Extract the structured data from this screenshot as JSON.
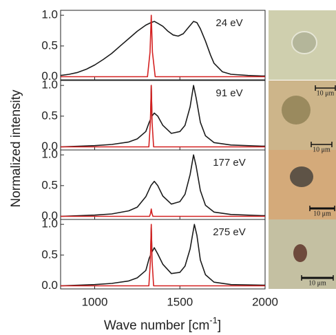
{
  "figure": {
    "y_label": "Normalized intensity",
    "x_label": {
      "base": "Wave number [cm",
      "superscript": "-1",
      "close": "]"
    }
  },
  "chart_data": [
    {
      "type": "line",
      "annotation": "24 eV",
      "xlim": [
        800,
        2000
      ],
      "ylim": [
        -0.05,
        1.08
      ],
      "yticks": [
        {
          "value": 0,
          "label": "0.0"
        },
        {
          "value": 0.5,
          "label": "0.5"
        },
        {
          "value": 1,
          "label": "1.0"
        }
      ],
      "series": [
        {
          "color": "#1a1a1a",
          "x": [
            800,
            850,
            900,
            950,
            1000,
            1050,
            1100,
            1150,
            1200,
            1250,
            1300,
            1330,
            1350,
            1370,
            1400,
            1430,
            1460,
            1490,
            1520,
            1550,
            1580,
            1600,
            1620,
            1650,
            1680,
            1700,
            1750,
            1800,
            1900,
            2000
          ],
          "values": [
            0.02,
            0.04,
            0.07,
            0.12,
            0.19,
            0.28,
            0.38,
            0.5,
            0.62,
            0.74,
            0.84,
            0.88,
            0.9,
            0.87,
            0.82,
            0.74,
            0.68,
            0.66,
            0.7,
            0.8,
            0.9,
            0.88,
            0.78,
            0.58,
            0.35,
            0.22,
            0.08,
            0.04,
            0.02,
            0.01
          ]
        },
        {
          "color": "#d42020",
          "x": [
            800,
            1310,
            1325,
            1332,
            1339,
            1355,
            2000
          ],
          "values": [
            0,
            0,
            0.4,
            1.0,
            0.4,
            0,
            0
          ]
        }
      ]
    },
    {
      "type": "line",
      "annotation": "91 eV",
      "xlim": [
        800,
        2000
      ],
      "ylim": [
        -0.05,
        1.08
      ],
      "yticks": [
        {
          "value": 0,
          "label": "0.0"
        },
        {
          "value": 0.5,
          "label": "0.5"
        },
        {
          "value": 1,
          "label": "1.0"
        }
      ],
      "series": [
        {
          "color": "#1a1a1a",
          "x": [
            800,
            1000,
            1100,
            1200,
            1250,
            1300,
            1320,
            1328,
            1332,
            1336,
            1350,
            1370,
            1400,
            1450,
            1500,
            1530,
            1560,
            1580,
            1595,
            1620,
            1650,
            1700,
            1800,
            2000
          ],
          "values": [
            0.0,
            0.02,
            0.04,
            0.08,
            0.13,
            0.25,
            0.4,
            0.45,
            1.0,
            0.5,
            0.55,
            0.5,
            0.35,
            0.22,
            0.25,
            0.35,
            0.65,
            1.0,
            0.8,
            0.4,
            0.18,
            0.07,
            0.03,
            0.01
          ]
        },
        {
          "color": "#d42020",
          "x": [
            800,
            1318,
            1327,
            1332,
            1337,
            1346,
            2000
          ],
          "values": [
            0,
            0,
            0.4,
            1.0,
            0.4,
            0,
            0
          ]
        }
      ]
    },
    {
      "type": "line",
      "annotation": "177 eV",
      "xlim": [
        800,
        2000
      ],
      "ylim": [
        -0.05,
        1.08
      ],
      "yticks": [
        {
          "value": 0,
          "label": "0.0"
        },
        {
          "value": 0.5,
          "label": "0.5"
        },
        {
          "value": 1,
          "label": "1.0"
        }
      ],
      "series": [
        {
          "color": "#1a1a1a",
          "x": [
            800,
            1000,
            1100,
            1200,
            1250,
            1300,
            1330,
            1350,
            1370,
            1400,
            1450,
            1500,
            1530,
            1560,
            1580,
            1595,
            1620,
            1650,
            1700,
            1800,
            2000
          ],
          "values": [
            0.0,
            0.02,
            0.04,
            0.09,
            0.15,
            0.32,
            0.5,
            0.57,
            0.5,
            0.33,
            0.2,
            0.24,
            0.36,
            0.68,
            1.0,
            0.82,
            0.42,
            0.18,
            0.07,
            0.03,
            0.01
          ]
        },
        {
          "color": "#d42020",
          "x": [
            800,
            1322,
            1328,
            1332,
            1336,
            1342,
            2000
          ],
          "values": [
            0,
            0,
            0.05,
            0.12,
            0.05,
            0,
            0
          ]
        }
      ]
    },
    {
      "type": "line",
      "annotation": "275 eV",
      "xlim": [
        800,
        2000
      ],
      "ylim": [
        -0.05,
        1.08
      ],
      "yticks": [
        {
          "value": 0,
          "label": "0.0"
        },
        {
          "value": 0.5,
          "label": "0.5"
        },
        {
          "value": 1,
          "label": "1.0"
        }
      ],
      "xticks": [
        1000,
        1500,
        2000
      ],
      "series": [
        {
          "color": "#1a1a1a",
          "x": [
            800,
            1000,
            1100,
            1200,
            1250,
            1300,
            1320,
            1328,
            1332,
            1336,
            1350,
            1370,
            1400,
            1450,
            1500,
            1530,
            1560,
            1585,
            1600,
            1620,
            1650,
            1700,
            1800,
            2000
          ],
          "values": [
            0.0,
            0.02,
            0.04,
            0.08,
            0.13,
            0.25,
            0.45,
            0.5,
            0.95,
            0.55,
            0.62,
            0.52,
            0.35,
            0.2,
            0.22,
            0.32,
            0.6,
            1.0,
            0.82,
            0.42,
            0.18,
            0.06,
            0.02,
            0.01
          ]
        },
        {
          "color": "#d42020",
          "x": [
            800,
            1318,
            1327,
            1332,
            1337,
            1346,
            2000
          ],
          "values": [
            0,
            0,
            0.4,
            1.0,
            0.4,
            0,
            0
          ]
        }
      ]
    }
  ],
  "images": [
    {
      "scale_label": "10 μm"
    },
    {
      "scale_label": "10 μm"
    },
    {
      "scale_label": "10 μm"
    },
    {
      "scale_label": "10 μm"
    }
  ]
}
